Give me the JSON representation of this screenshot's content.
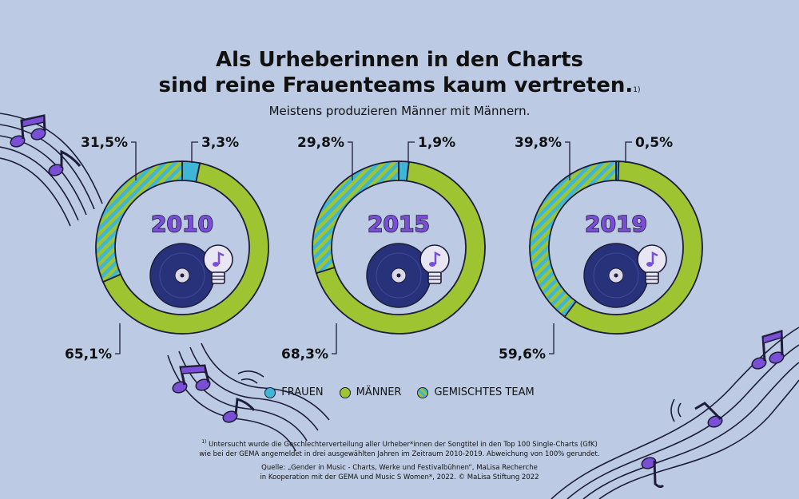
{
  "header": {
    "title_line1": "Als Urheberinnen in den Charts",
    "title_line2": "sind reine Frauenteams kaum vertreten.",
    "title_footnote_mark": "1)",
    "subtitle": "Meistens produzieren Männer mit Männern."
  },
  "colors": {
    "background": "#bccbe3",
    "frauen": "#3fb6d6",
    "maenner": "#9ec531",
    "outline": "#1d1d3b",
    "record": "#27327a",
    "year_purple": "#7a4fd6"
  },
  "legend": {
    "frauen": "FRAUEN",
    "maenner": "MÄNNER",
    "gemischt": "GEMISCHTES TEAM"
  },
  "footnote": {
    "mark": "1)",
    "line1": "Untersucht wurde die Geschlechterverteilung aller Urheber*innen der Songtitel in den Top 100 Single-Charts (GfK)",
    "line2": "wie bei der GEMA angemeldet in drei ausgewählten Jahren im Zeitraum 2010-2019. Abweichung von 100% gerundet."
  },
  "source": {
    "line1": "Quelle: „Gender in Music - Charts, Werke und Festivalbühnen“, MaLisa Recherche",
    "line2": "in Kooperation mit der GEMA und Music S Women*, 2022. © MaLisa Stiftung 2022"
  },
  "chart_data": [
    {
      "type": "pie",
      "year": "2010",
      "slices": [
        {
          "name": "FRAUEN",
          "value": 3.3,
          "label": "3,3%"
        },
        {
          "name": "MÄNNER",
          "value": 65.1,
          "label": "65,1%"
        },
        {
          "name": "GEMISCHTES TEAM",
          "value": 31.5,
          "label": "31,5%"
        }
      ]
    },
    {
      "type": "pie",
      "year": "2015",
      "slices": [
        {
          "name": "FRAUEN",
          "value": 1.9,
          "label": "1,9%"
        },
        {
          "name": "MÄNNER",
          "value": 68.3,
          "label": "68,3%"
        },
        {
          "name": "GEMISCHTES TEAM",
          "value": 29.8,
          "label": "29,8%"
        }
      ]
    },
    {
      "type": "pie",
      "year": "2019",
      "slices": [
        {
          "name": "FRAUEN",
          "value": 0.5,
          "label": "0,5%"
        },
        {
          "name": "MÄNNER",
          "value": 59.6,
          "label": "59,6%"
        },
        {
          "name": "GEMISCHTES TEAM",
          "value": 39.8,
          "label": "39,8%"
        }
      ]
    }
  ]
}
